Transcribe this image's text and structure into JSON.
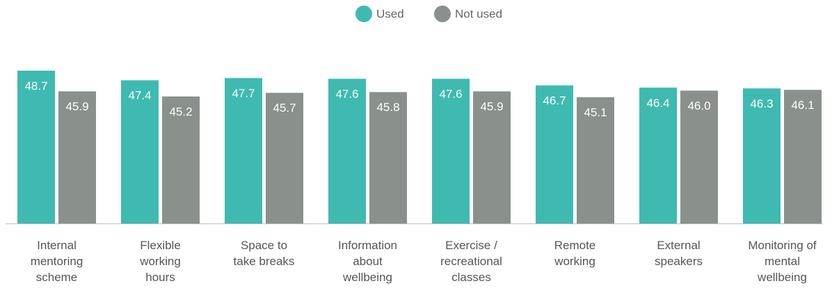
{
  "chart_data": {
    "type": "bar",
    "categories": [
      "Internal\nmentoring\nscheme",
      "Flexible\nworking\nhours",
      "Space to\ntake breaks",
      "Information\nabout\nwellbeing",
      "Exercise /\nrecreational\nclasses",
      "Remote\nworking",
      "External\nspeakers",
      "Monitoring of\nmental\nwellbeing"
    ],
    "series": [
      {
        "name": "Used",
        "color": "#3fbab0",
        "values": [
          48.7,
          47.4,
          47.7,
          47.6,
          47.6,
          46.7,
          46.4,
          46.3
        ],
        "value_labels": [
          "48.7",
          "47.4",
          "47.7",
          "47.6",
          "47.6",
          "46.7",
          "46.4",
          "46.3"
        ]
      },
      {
        "name": "Not used",
        "color": "#8a918c",
        "values": [
          45.9,
          45.2,
          45.7,
          45.8,
          45.9,
          45.1,
          46.0,
          46.1
        ],
        "value_labels": [
          "45.9",
          "45.2",
          "45.7",
          "45.8",
          "45.9",
          "45.1",
          "46.0",
          "46.1"
        ]
      }
    ],
    "ylim": [
      28,
      50
    ],
    "legend": "top"
  }
}
